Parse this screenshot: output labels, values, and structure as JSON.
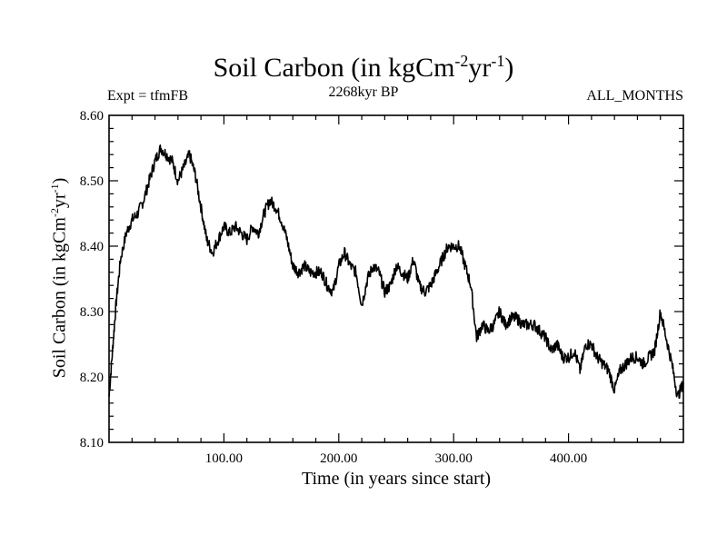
{
  "chart_data": {
    "type": "line",
    "title": {
      "pre": "Soil Carbon (in kgCm",
      "sup1": "-2",
      "mid": "yr",
      "sup2": "-1",
      "post": ")"
    },
    "subtitle_left": "Expt = tfmFB",
    "subtitle_center": "2268kyr BP",
    "subtitle_right": "ALL_MONTHS",
    "xlabel": "Time (in years since start)",
    "ylabel": {
      "pre": "Soil Carbon (in kgCm",
      "sup1": "-2",
      "mid": "yr",
      "sup2": "-1",
      "post": ")"
    },
    "xlim": [
      0,
      500
    ],
    "ylim": [
      8.1,
      8.6
    ],
    "x_ticks": [
      100,
      200,
      300,
      400
    ],
    "x_tick_labels": [
      "100.00",
      "200.00",
      "300.00",
      "400.00"
    ],
    "y_ticks": [
      8.1,
      8.2,
      8.3,
      8.4,
      8.5,
      8.6
    ],
    "y_tick_labels": [
      "8.10",
      "8.20",
      "8.30",
      "8.40",
      "8.50",
      "8.60"
    ],
    "grid": false,
    "series": [
      {
        "color": "#000000",
        "x": [
          0,
          3,
          6,
          10,
          15,
          20,
          25,
          30,
          35,
          40,
          45,
          50,
          55,
          60,
          65,
          70,
          75,
          80,
          85,
          90,
          95,
          100,
          105,
          110,
          115,
          120,
          125,
          130,
          135,
          140,
          145,
          150,
          155,
          160,
          165,
          170,
          175,
          180,
          185,
          190,
          195,
          200,
          205,
          210,
          215,
          220,
          225,
          230,
          235,
          240,
          245,
          250,
          255,
          260,
          265,
          270,
          275,
          280,
          285,
          290,
          295,
          300,
          305,
          310,
          315,
          320,
          325,
          330,
          335,
          340,
          345,
          350,
          355,
          360,
          365,
          370,
          375,
          380,
          385,
          390,
          395,
          400,
          405,
          410,
          415,
          420,
          425,
          430,
          435,
          440,
          445,
          450,
          455,
          460,
          465,
          470,
          475,
          480,
          485,
          490,
          495,
          500
        ],
        "y": [
          8.17,
          8.24,
          8.31,
          8.38,
          8.42,
          8.44,
          8.45,
          8.47,
          8.5,
          8.53,
          8.55,
          8.54,
          8.53,
          8.5,
          8.52,
          8.54,
          8.51,
          8.46,
          8.41,
          8.39,
          8.41,
          8.43,
          8.42,
          8.43,
          8.42,
          8.41,
          8.43,
          8.42,
          8.45,
          8.47,
          8.46,
          8.44,
          8.41,
          8.37,
          8.36,
          8.37,
          8.36,
          8.36,
          8.36,
          8.34,
          8.33,
          8.37,
          8.39,
          8.37,
          8.36,
          8.31,
          8.35,
          8.37,
          8.36,
          8.33,
          8.34,
          8.37,
          8.36,
          8.35,
          8.38,
          8.34,
          8.33,
          8.34,
          8.36,
          8.38,
          8.4,
          8.4,
          8.4,
          8.37,
          8.34,
          8.26,
          8.28,
          8.27,
          8.28,
          8.3,
          8.28,
          8.29,
          8.29,
          8.28,
          8.28,
          8.28,
          8.27,
          8.26,
          8.24,
          8.25,
          8.23,
          8.23,
          8.24,
          8.21,
          8.25,
          8.25,
          8.23,
          8.22,
          8.21,
          8.18,
          8.21,
          8.22,
          8.23,
          8.23,
          8.22,
          8.23,
          8.24,
          8.3,
          8.26,
          8.22,
          8.17,
          8.19
        ]
      }
    ]
  }
}
